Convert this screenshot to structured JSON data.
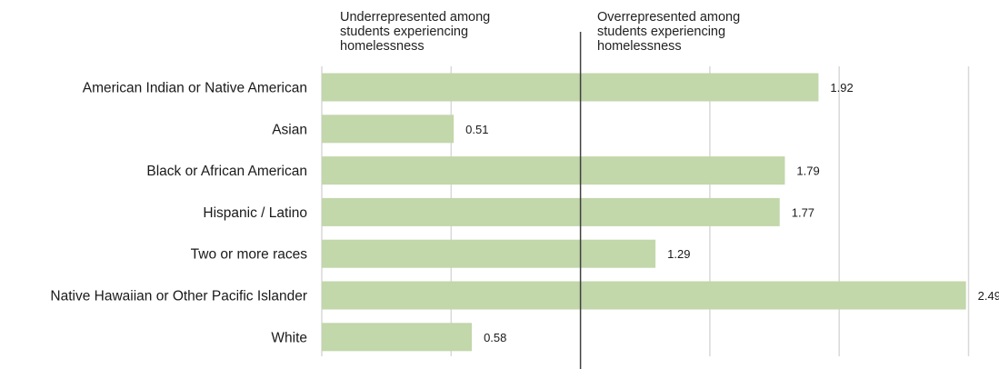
{
  "chart_data": {
    "type": "bar",
    "orientation": "horizontal",
    "categories": [
      "American Indian or Native American",
      "Asian",
      "Black or African American",
      "Hispanic / Latino",
      "Two or more races",
      "Native Hawaiian or Other Pacific Islander",
      "White"
    ],
    "values": [
      1.92,
      0.51,
      1.79,
      1.77,
      1.29,
      2.49,
      0.58
    ],
    "value_labels": [
      "1.92",
      "0.51",
      "1.79",
      "1.77",
      "1.29",
      "2.49",
      "0.58"
    ],
    "reference_line": 1.0,
    "xlim": [
      0,
      2.5
    ],
    "grid_step": 0.5,
    "grid": true,
    "title": "",
    "xlabel": "",
    "ylabel": "",
    "annotations": {
      "left": "Underrepresented  among\nstudents  experiencing\nhomelessness",
      "right": "Overrepresented  among\nstudents  experiencing\nhomelessness"
    },
    "colors": {
      "bar": "#c2d7aa",
      "grid": "#d9d9d9",
      "reference_line": "#404040",
      "text": "#1a1a1a"
    }
  }
}
